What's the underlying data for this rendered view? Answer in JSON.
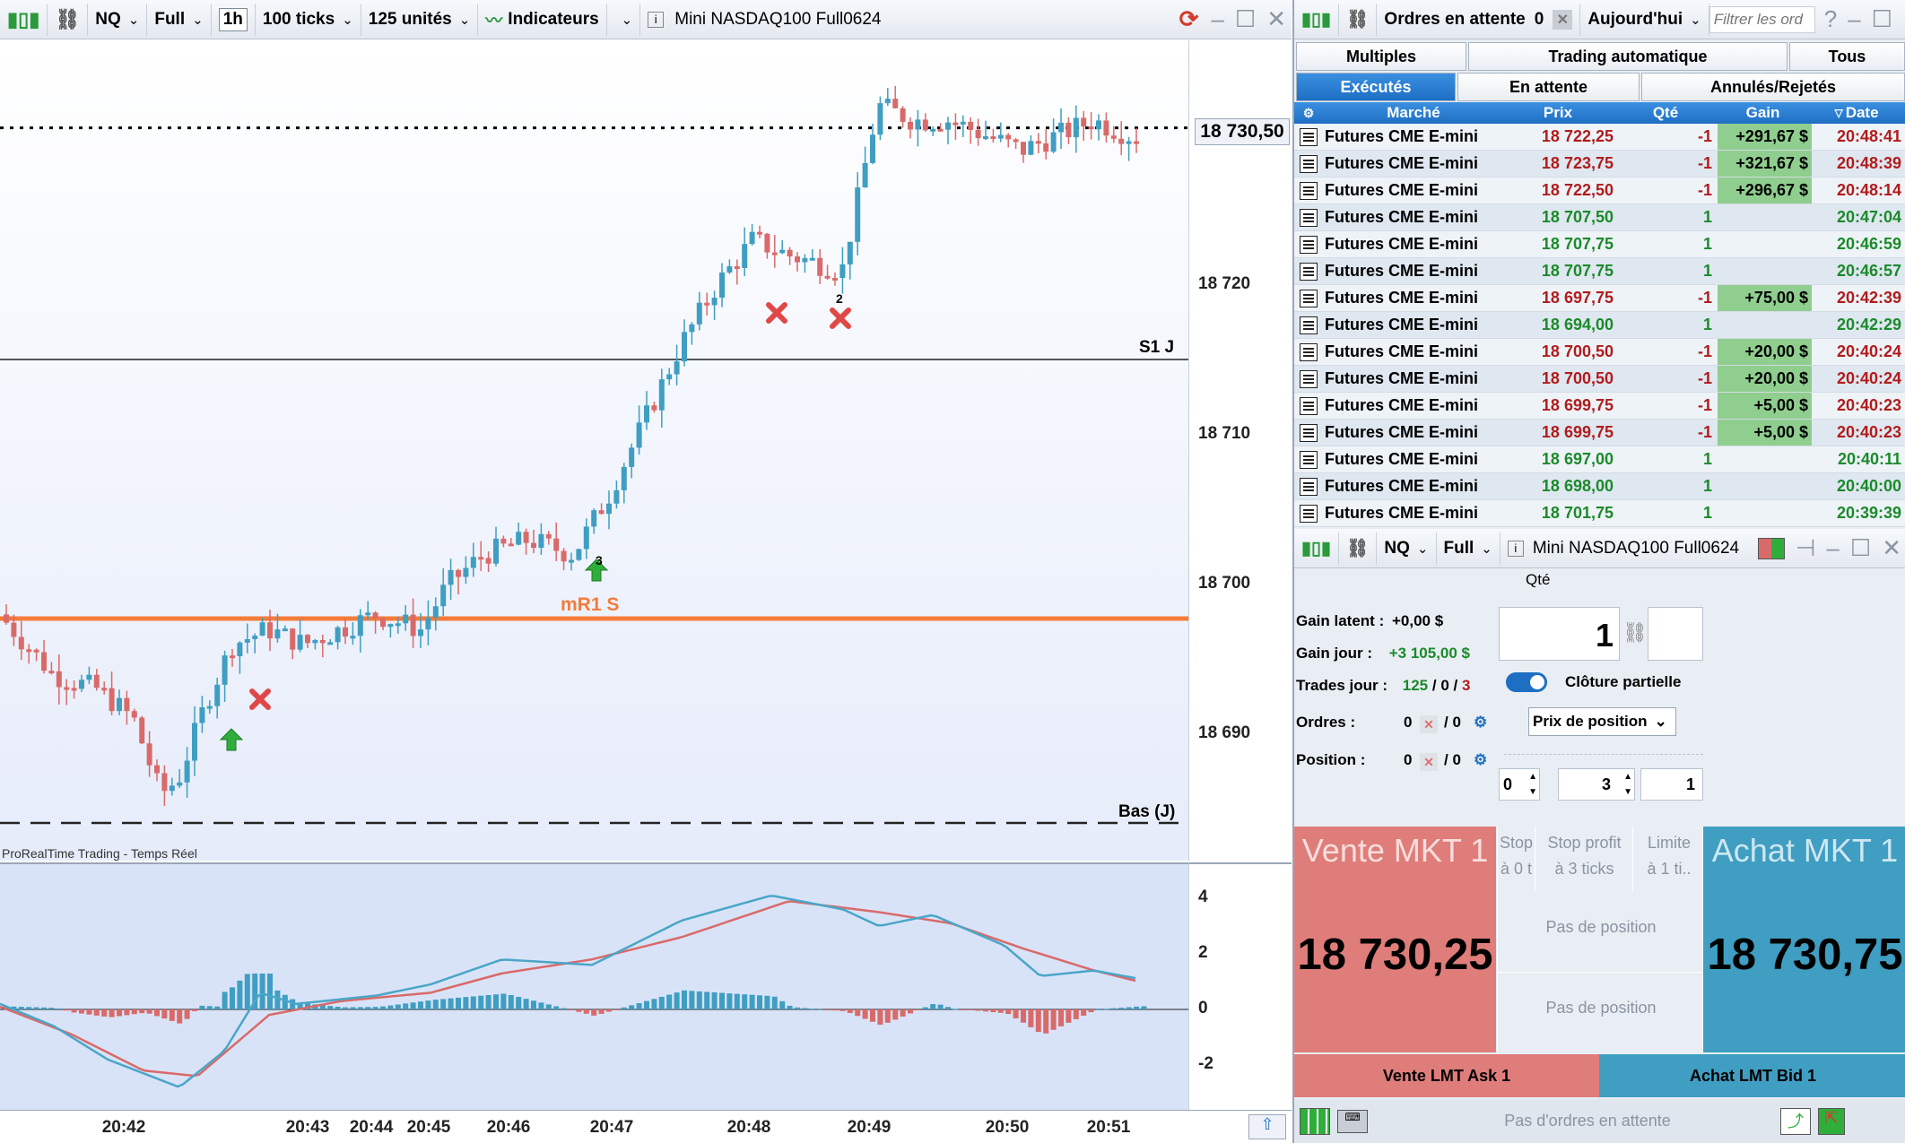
{
  "chart_toolbar": {
    "symbol": "NQ",
    "mode": "Full",
    "timeframe": "1h",
    "ticks": "100 ticks",
    "units": "125 unités",
    "indicators_label": "Indicateurs",
    "instrument_title": "Mini NASDAQ100 Full0624"
  },
  "price_axis": {
    "current_price": "18 730,50",
    "labels": [
      "18 720",
      "18 710",
      "18 700",
      "18 690"
    ]
  },
  "chart_annotations": {
    "s1": "S1 J",
    "mr1": "mR1 S",
    "low": "Bas (J)",
    "source": "ProRealTime Trading - Temps Réel",
    "marker_2": "2",
    "marker_3": "3"
  },
  "indicator_axis": {
    "labels": [
      "4",
      "2",
      "0",
      "-2"
    ]
  },
  "time_axis": {
    "labels": [
      "20:42",
      "20:43",
      "20:44",
      "20:45",
      "20:46",
      "20:47",
      "20:48",
      "20:49",
      "20:50",
      "20:51"
    ]
  },
  "orders_panel": {
    "title": "Ordres en attente",
    "pending_count": "0",
    "period": "Aujourd'hui",
    "filter_placeholder": "Filtrer les ord",
    "tabs_row1": [
      "Multiples",
      "Trading automatique",
      "Tous"
    ],
    "tabs_row2": [
      "Exécutés",
      "En attente",
      "Annulés/Rejetés"
    ],
    "columns": [
      "Marché",
      "Prix",
      "Qté",
      "Gain",
      "Date"
    ],
    "rows": [
      {
        "market": "Futures CME E-mini",
        "price": "18 722,25",
        "qty": "-1",
        "gain": "+291,67 $",
        "date": "20:48:41"
      },
      {
        "market": "Futures CME E-mini",
        "price": "18 723,75",
        "qty": "-1",
        "gain": "+321,67 $",
        "date": "20:48:39"
      },
      {
        "market": "Futures CME E-mini",
        "price": "18 722,50",
        "qty": "-1",
        "gain": "+296,67 $",
        "date": "20:48:14"
      },
      {
        "market": "Futures CME E-mini",
        "price": "18 707,50",
        "qty": "1",
        "gain": "",
        "date": "20:47:04"
      },
      {
        "market": "Futures CME E-mini",
        "price": "18 707,75",
        "qty": "1",
        "gain": "",
        "date": "20:46:59"
      },
      {
        "market": "Futures CME E-mini",
        "price": "18 707,75",
        "qty": "1",
        "gain": "",
        "date": "20:46:57"
      },
      {
        "market": "Futures CME E-mini",
        "price": "18 697,75",
        "qty": "-1",
        "gain": "+75,00 $",
        "date": "20:42:39"
      },
      {
        "market": "Futures CME E-mini",
        "price": "18 694,00",
        "qty": "1",
        "gain": "",
        "date": "20:42:29"
      },
      {
        "market": "Futures CME E-mini",
        "price": "18 700,50",
        "qty": "-1",
        "gain": "+20,00 $",
        "date": "20:40:24"
      },
      {
        "market": "Futures CME E-mini",
        "price": "18 700,50",
        "qty": "-1",
        "gain": "+20,00 $",
        "date": "20:40:24"
      },
      {
        "market": "Futures CME E-mini",
        "price": "18 699,75",
        "qty": "-1",
        "gain": "+5,00 $",
        "date": "20:40:23"
      },
      {
        "market": "Futures CME E-mini",
        "price": "18 699,75",
        "qty": "-1",
        "gain": "+5,00 $",
        "date": "20:40:23"
      },
      {
        "market": "Futures CME E-mini",
        "price": "18 697,00",
        "qty": "1",
        "gain": "",
        "date": "20:40:11"
      },
      {
        "market": "Futures CME E-mini",
        "price": "18 698,00",
        "qty": "1",
        "gain": "",
        "date": "20:40:00"
      },
      {
        "market": "Futures CME E-mini",
        "price": "18 701,75",
        "qty": "1",
        "gain": "",
        "date": "20:39:39"
      }
    ]
  },
  "ticket": {
    "symbol": "NQ",
    "mode": "Full",
    "instrument_title": "Mini NASDAQ100 Full0624",
    "gain_latent_label": "Gain latent :",
    "gain_latent_value": "+0,00 $",
    "gain_jour_label": "Gain jour :",
    "gain_jour_value": "+3 105,00 $",
    "trades_label": "Trades jour :",
    "trades_total": "125",
    "trades_sep1": "/",
    "trades_mid": "0",
    "trades_sep2": "/",
    "trades_last": "3",
    "orders_label": "Ordres :",
    "orders_value": "0",
    "orders_total": "/ 0",
    "position_label": "Position :",
    "position_value": "0",
    "position_total": "/ 0",
    "qty_label": "Qté",
    "qty_value": "1",
    "partial_close": "Clôture partielle",
    "price_mode": "Prix de position",
    "stepper_1": "0",
    "stepper_2": "3",
    "stepper_3": "1",
    "sell_mkt": "Vente MKT 1",
    "buy_mkt": "Achat MKT 1",
    "bid": "18 730,25",
    "ask": "18 730,75",
    "stop_label": "Stop",
    "stop_sub": "à 0 t",
    "stop_profit_label": "Stop profit",
    "stop_profit_sub": "à 3 ticks",
    "limit_label": "Limite",
    "limit_sub": "à 1 ti..",
    "no_position_1": "Pas de position",
    "no_position_2": "Pas de position",
    "sell_lmt": "Vente LMT Ask 1",
    "buy_lmt": "Achat LMT Bid 1",
    "no_pending": "Pas d'ordres en attente"
  },
  "colors": {
    "bull_candle": "#3f9ec2",
    "bear_candle": "#d96a6a",
    "mr1_line": "#f47b3a",
    "signal_green": "#2fae3c",
    "signal_red": "#e04848"
  }
}
